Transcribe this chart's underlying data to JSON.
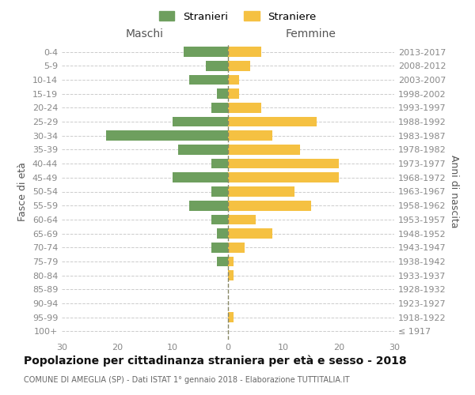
{
  "age_groups": [
    "100+",
    "95-99",
    "90-94",
    "85-89",
    "80-84",
    "75-79",
    "70-74",
    "65-69",
    "60-64",
    "55-59",
    "50-54",
    "45-49",
    "40-44",
    "35-39",
    "30-34",
    "25-29",
    "20-24",
    "15-19",
    "10-14",
    "5-9",
    "0-4"
  ],
  "birth_years": [
    "≤ 1917",
    "1918-1922",
    "1923-1927",
    "1928-1932",
    "1933-1937",
    "1938-1942",
    "1943-1947",
    "1948-1952",
    "1953-1957",
    "1958-1962",
    "1963-1967",
    "1968-1972",
    "1973-1977",
    "1978-1982",
    "1983-1987",
    "1988-1992",
    "1993-1997",
    "1998-2002",
    "2003-2007",
    "2008-2012",
    "2013-2017"
  ],
  "maschi": [
    0,
    0,
    0,
    0,
    0,
    2,
    3,
    2,
    3,
    7,
    3,
    10,
    3,
    9,
    22,
    10,
    3,
    2,
    7,
    4,
    8
  ],
  "femmine": [
    0,
    1,
    0,
    0,
    1,
    1,
    3,
    8,
    5,
    15,
    12,
    20,
    20,
    13,
    8,
    16,
    6,
    2,
    2,
    4,
    6
  ],
  "maschi_color": "#6e9f5e",
  "femmine_color": "#f5c142",
  "title": "Popolazione per cittadinanza straniera per età e sesso - 2018",
  "subtitle": "COMUNE DI AMEGLIA (SP) - Dati ISTAT 1° gennaio 2018 - Elaborazione TUTTITALIA.IT",
  "header_left": "Maschi",
  "header_right": "Femmine",
  "ylabel_left": "Fasce di età",
  "ylabel_right": "Anni di nascita",
  "legend_maschi": "Stranieri",
  "legend_femmine": "Straniere",
  "xlim": 30,
  "background_color": "#ffffff",
  "grid_color": "#cccccc",
  "tick_color": "#888888",
  "label_color": "#555555"
}
